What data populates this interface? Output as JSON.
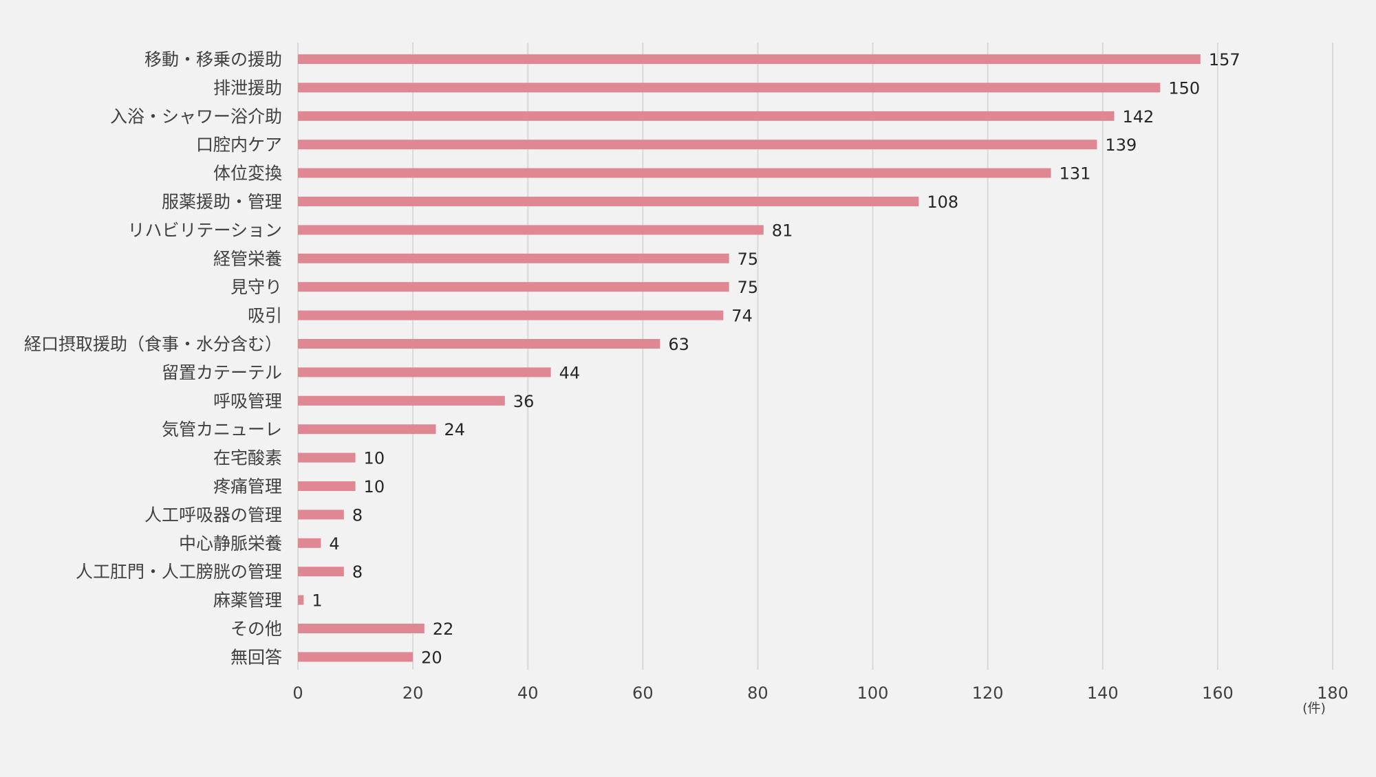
{
  "chart_data": {
    "type": "bar",
    "orientation": "horizontal",
    "categories": [
      "移動・移乗の援助",
      "排泄援助",
      "入浴・シャワー浴介助",
      "口腔内ケア",
      "体位変換",
      "服薬援助・管理",
      "リハビリテーション",
      "経管栄養",
      "見守り",
      "吸引",
      "経口摂取援助（食事・水分含む）",
      "留置カテーテル",
      "呼吸管理",
      "気管カニューレ",
      "在宅酸素",
      "疼痛管理",
      "人工呼吸器の管理",
      "中心静脈栄養",
      "人工肛門・人工膀胱の管理",
      "麻薬管理",
      "その他",
      "無回答"
    ],
    "values": [
      157,
      150,
      142,
      139,
      131,
      108,
      81,
      75,
      75,
      74,
      63,
      44,
      36,
      24,
      10,
      10,
      8,
      4,
      8,
      1,
      22,
      20
    ],
    "value_labels": [
      "157",
      "150",
      "142",
      "139",
      "131",
      "108",
      "81",
      "75",
      "75",
      "74",
      "63",
      "44",
      "36",
      "24",
      "10",
      "10",
      "8",
      "4",
      "8",
      "1",
      "22",
      "20"
    ],
    "xlim": [
      0,
      180
    ],
    "x_ticks": [
      "0",
      "20",
      "40",
      "60",
      "80",
      "100",
      "120",
      "140",
      "160",
      "180"
    ],
    "x_unit": "(件)",
    "title": "",
    "xlabel": "",
    "ylabel": "",
    "grid": "vertical",
    "legend": "none",
    "bar_color": "#e08794",
    "background": "#f2f2f2"
  }
}
